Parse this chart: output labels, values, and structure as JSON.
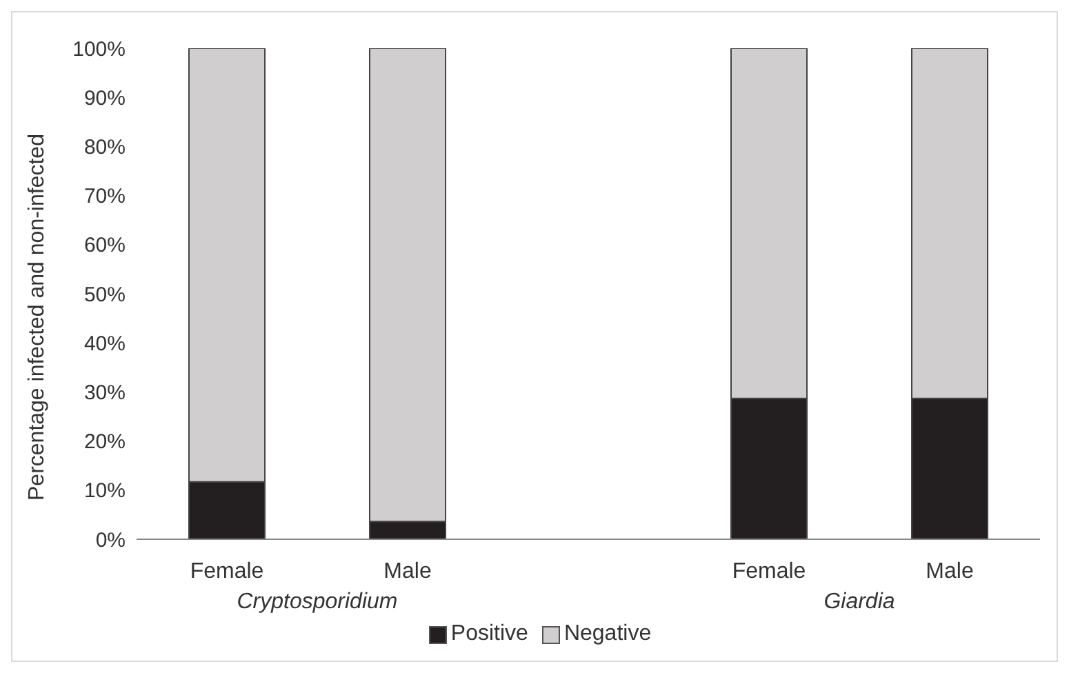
{
  "chart_data": {
    "type": "bar",
    "stacked": true,
    "ylabel": "Percentage infected and non-infected",
    "categories": [
      "Female",
      "Male",
      null,
      "Female",
      "Male"
    ],
    "series": [
      {
        "name": "Positive",
        "color": "#231f20",
        "values": [
          11.7,
          3.6,
          null,
          28.7,
          28.7
        ]
      },
      {
        "name": "Negative",
        "color": "#d0cecf",
        "values": [
          88.3,
          96.4,
          null,
          71.3,
          71.3
        ]
      }
    ],
    "ylim": [
      0,
      100
    ],
    "yticks": [
      {
        "value": 0,
        "label": "0%"
      },
      {
        "value": 10,
        "label": "10%"
      },
      {
        "value": 20,
        "label": "20%"
      },
      {
        "value": 30,
        "label": "30%"
      },
      {
        "value": 40,
        "label": "40%"
      },
      {
        "value": 50,
        "label": "50%"
      },
      {
        "value": 60,
        "label": "60%"
      },
      {
        "value": 70,
        "label": "70%"
      },
      {
        "value": 80,
        "label": "80%"
      },
      {
        "value": 90,
        "label": "90%"
      },
      {
        "value": 100,
        "label": "100%"
      }
    ],
    "annotations": [
      "Cryptosporidium",
      "Giardia"
    ],
    "legend": "bottom",
    "grid": false
  }
}
